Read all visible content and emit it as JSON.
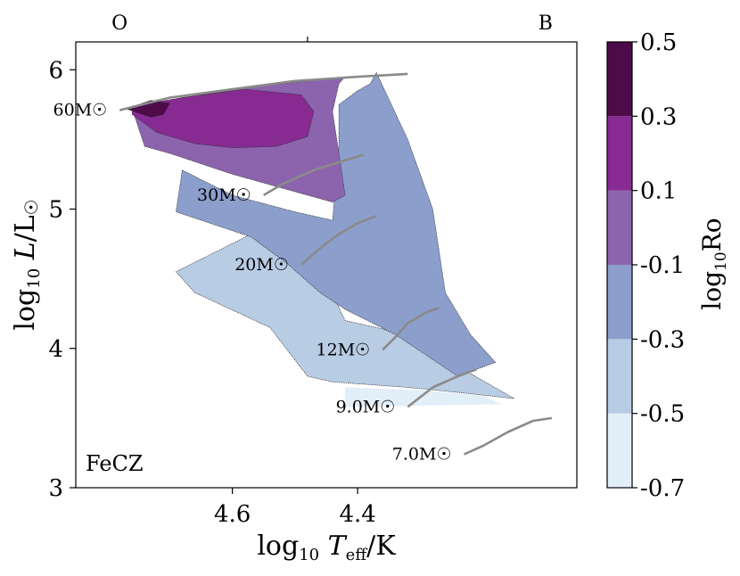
{
  "chart_data": {
    "type": "contour",
    "xlabel_main": "log",
    "xlabel_sub": "10",
    "xlabel_var": "T",
    "xlabel_var_sub": "eff",
    "xlabel_unit": "/K",
    "ylabel_main": "log",
    "ylabel_sub": "10",
    "ylabel_var": "L",
    "ylabel_unit": "/L",
    "ylabel_sun": "☉",
    "x_reversed": true,
    "xlim": [
      4.85,
      4.05
    ],
    "ylim": [
      3,
      6.2
    ],
    "x_ticks": [
      {
        "value": 4.6,
        "label": "4.6"
      },
      {
        "value": 4.4,
        "label": "4.4"
      }
    ],
    "y_ticks": [
      {
        "value": 3,
        "label": "3"
      },
      {
        "value": 4,
        "label": "4"
      },
      {
        "value": 5,
        "label": "5"
      },
      {
        "value": 6,
        "label": "6"
      }
    ],
    "top_axis": [
      {
        "value": 4.48,
        "label": "",
        "tick": true
      }
    ],
    "top_labels": [
      {
        "label": "O",
        "value": 4.78
      },
      {
        "label": "B",
        "value": 4.1
      }
    ],
    "annotation": "FeCZ",
    "colorbar": {
      "label_main": "log",
      "label_sub": "10",
      "label_var": "Ro",
      "levels": [
        -0.7,
        -0.5,
        -0.3,
        -0.1,
        0.1,
        0.3,
        0.5
      ],
      "tick_labels": [
        "-0.7",
        "-0.5",
        "-0.3",
        "-0.1",
        "0.1",
        "0.3",
        "0.5"
      ],
      "colors": [
        "#e2eef8",
        "#b8cce4",
        "#8c9ecb",
        "#8c64ad",
        "#872b92",
        "#4d0b4a"
      ]
    },
    "regions": [
      {
        "level": "-0.7 to -0.5",
        "points": [
          [
            4.42,
            3.72
          ],
          [
            4.3,
            3.7
          ],
          [
            4.2,
            3.66
          ],
          [
            4.17,
            3.6
          ],
          [
            4.42,
            3.58
          ]
        ]
      },
      {
        "level": "-0.5 to -0.3",
        "points": [
          [
            4.57,
            4.82
          ],
          [
            4.5,
            4.62
          ],
          [
            4.45,
            4.48
          ],
          [
            4.42,
            4.2
          ],
          [
            4.36,
            4.14
          ],
          [
            4.28,
            4.0
          ],
          [
            4.22,
            3.82
          ],
          [
            4.15,
            3.64
          ],
          [
            4.23,
            3.68
          ],
          [
            4.32,
            3.72
          ],
          [
            4.44,
            3.76
          ],
          [
            4.48,
            3.8
          ],
          [
            4.54,
            4.15
          ],
          [
            4.66,
            4.4
          ],
          [
            4.69,
            4.55
          ]
        ]
      },
      {
        "level": "-0.3 to -0.1",
        "points": [
          [
            4.68,
            5.28
          ],
          [
            4.6,
            5.1
          ],
          [
            4.5,
            4.98
          ],
          [
            4.44,
            4.92
          ],
          [
            4.43,
            5.45
          ],
          [
            4.43,
            5.75
          ],
          [
            4.4,
            5.85
          ],
          [
            4.38,
            5.9
          ],
          [
            4.37,
            5.98
          ],
          [
            4.32,
            5.5
          ],
          [
            4.28,
            5.0
          ],
          [
            4.26,
            4.4
          ],
          [
            4.22,
            4.1
          ],
          [
            4.18,
            3.9
          ],
          [
            4.24,
            3.8
          ],
          [
            4.34,
            4.1
          ],
          [
            4.42,
            4.28
          ],
          [
            4.46,
            4.4
          ],
          [
            4.51,
            4.6
          ],
          [
            4.57,
            4.8
          ],
          [
            4.69,
            4.98
          ]
        ]
      },
      {
        "level": "-0.1 to 0.1",
        "points": [
          [
            4.74,
            5.45
          ],
          [
            4.7,
            5.4
          ],
          [
            4.6,
            5.25
          ],
          [
            4.52,
            5.15
          ],
          [
            4.44,
            5.05
          ],
          [
            4.42,
            5.1
          ],
          [
            4.43,
            5.4
          ],
          [
            4.44,
            5.7
          ],
          [
            4.43,
            5.9
          ],
          [
            4.42,
            5.95
          ],
          [
            4.56,
            5.88
          ],
          [
            4.68,
            5.8
          ],
          [
            4.76,
            5.72
          ]
        ]
      },
      {
        "level": "0.1 to 0.3",
        "points": [
          [
            4.76,
            5.68
          ],
          [
            4.72,
            5.55
          ],
          [
            4.66,
            5.47
          ],
          [
            4.6,
            5.44
          ],
          [
            4.53,
            5.45
          ],
          [
            4.48,
            5.52
          ],
          [
            4.47,
            5.7
          ],
          [
            4.49,
            5.82
          ],
          [
            4.58,
            5.86
          ],
          [
            4.68,
            5.8
          ],
          [
            4.76,
            5.74
          ]
        ]
      },
      {
        "level": "0.3 to 0.5",
        "points": [
          [
            4.77,
            5.72
          ],
          [
            4.73,
            5.66
          ],
          [
            4.71,
            5.68
          ],
          [
            4.7,
            5.76
          ],
          [
            4.73,
            5.78
          ]
        ]
      }
    ],
    "tracks": [
      {
        "label": "60M☉",
        "mass": 60,
        "points": [
          [
            4.78,
            5.71
          ],
          [
            4.7,
            5.8
          ],
          [
            4.6,
            5.86
          ],
          [
            4.5,
            5.92
          ],
          [
            4.4,
            5.95
          ],
          [
            4.32,
            5.97
          ]
        ]
      },
      {
        "label": "30M☉",
        "mass": 30,
        "points": [
          [
            4.55,
            5.1
          ],
          [
            4.52,
            5.18
          ],
          [
            4.47,
            5.28
          ],
          [
            4.42,
            5.35
          ],
          [
            4.39,
            5.39
          ]
        ]
      },
      {
        "label": "20M☉",
        "mass": 20,
        "points": [
          [
            4.49,
            4.6
          ],
          [
            4.46,
            4.72
          ],
          [
            4.43,
            4.82
          ],
          [
            4.4,
            4.9
          ],
          [
            4.37,
            4.95
          ]
        ]
      },
      {
        "label": "12M☉",
        "mass": 12,
        "points": [
          [
            4.36,
            3.99
          ],
          [
            4.34,
            4.08
          ],
          [
            4.32,
            4.18
          ],
          [
            4.29,
            4.26
          ],
          [
            4.27,
            4.29
          ]
        ]
      },
      {
        "label": "9.0M☉",
        "mass": 9,
        "points": [
          [
            4.32,
            3.58
          ],
          [
            4.3,
            3.65
          ],
          [
            4.28,
            3.72
          ],
          [
            4.24,
            3.8
          ],
          [
            4.21,
            3.85
          ]
        ]
      },
      {
        "label": "7.0M☉",
        "mass": 7,
        "points": [
          [
            4.23,
            3.24
          ],
          [
            4.2,
            3.3
          ],
          [
            4.16,
            3.4
          ],
          [
            4.12,
            3.48
          ],
          [
            4.09,
            3.5
          ]
        ]
      }
    ]
  }
}
